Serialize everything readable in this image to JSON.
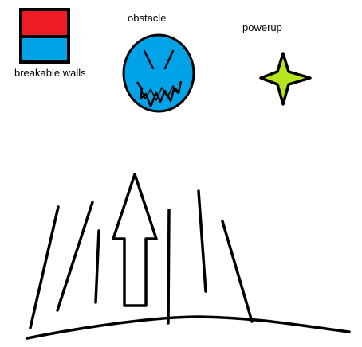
{
  "legend": {
    "breakable_walls_label": "breakable walls",
    "obstacle_label": "obstacle",
    "powerup_label": "powerup"
  },
  "colors": {
    "wall_top": "#ed1c24",
    "wall_bottom": "#00a2e8",
    "obstacle_fill": "#00a2e8",
    "powerup_fill": "#b5e61d",
    "ink": "#000000"
  },
  "icons": {
    "wall": "breakable-wall-icon",
    "obstacle": "obstacle-face-icon",
    "powerup": "star-sparkle-icon",
    "player": "up-arrow-icon"
  }
}
